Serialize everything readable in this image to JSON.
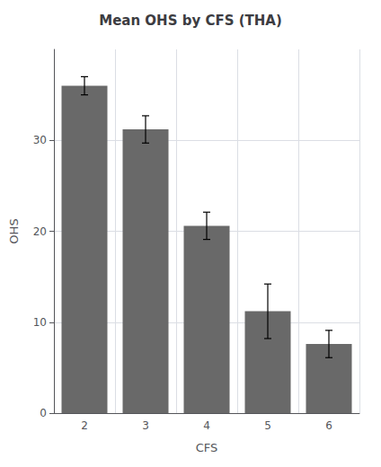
{
  "chart_data": {
    "type": "bar",
    "title": "Mean OHS by CFS (THA)",
    "xlabel": "CFS",
    "ylabel": "OHS",
    "categories": [
      "2",
      "3",
      "4",
      "5",
      "6"
    ],
    "values": [
      36.0,
      31.2,
      20.6,
      11.2,
      7.6
    ],
    "errors": [
      1.0,
      1.5,
      1.5,
      3.0,
      1.5
    ],
    "color": "#696969",
    "ylim": [
      0,
      40
    ],
    "yticks": [
      0,
      10,
      20,
      30
    ],
    "grid": true
  }
}
